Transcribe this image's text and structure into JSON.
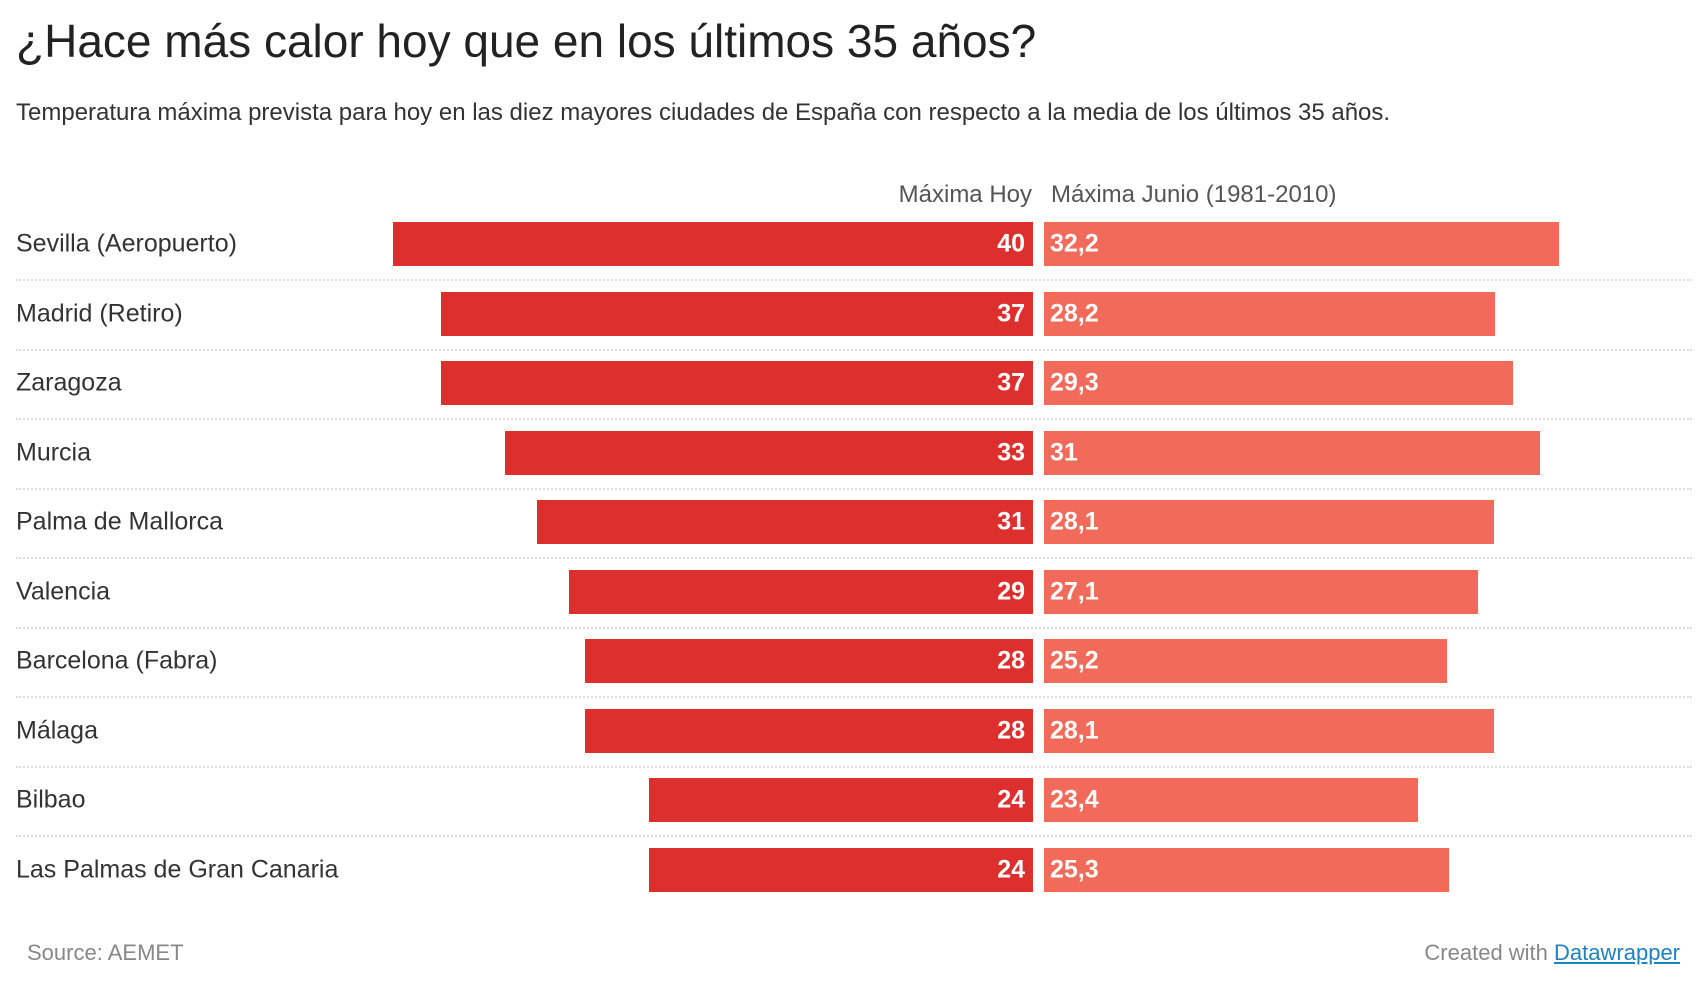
{
  "chart_data": {
    "type": "bar",
    "title": "¿Hace más calor hoy que en los últimos 35 años?",
    "subtitle": "Temperatura máxima prevista para hoy en las diez mayores ciudades de España con respecto a la media de los últimos 35 años.",
    "categories": [
      "Sevilla (Aeropuerto)",
      "Madrid (Retiro)",
      "Zaragoza",
      "Murcia",
      "Palma de Mallorca",
      "Valencia",
      "Barcelona (Fabra)",
      "Málaga",
      "Bilbao",
      "Las Palmas de Gran Canaria"
    ],
    "series": [
      {
        "name": "Máxima Hoy",
        "color": "#de2f2f",
        "values": [
          40,
          37,
          37,
          33,
          31,
          29,
          28,
          28,
          24,
          24
        ],
        "labels": [
          "40",
          "37",
          "37",
          "33",
          "31",
          "29",
          "28",
          "28",
          "24",
          "24"
        ]
      },
      {
        "name": "Máxima Junio (1981-2010)",
        "color": "#f26b5a",
        "values": [
          32.2,
          28.2,
          29.3,
          31,
          28.1,
          27.1,
          25.2,
          28.1,
          23.4,
          25.3
        ],
        "labels": [
          "32,2",
          "28,2",
          "29,3",
          "31",
          "28,1",
          "27,1",
          "25,2",
          "28,1",
          "23,4",
          "25,3"
        ]
      }
    ],
    "xlabel": "",
    "ylabel": "",
    "xlim": [
      0,
      40
    ]
  },
  "footer": {
    "source": "Source: AEMET",
    "created_with": "Created with",
    "link": "Datawrapper"
  }
}
